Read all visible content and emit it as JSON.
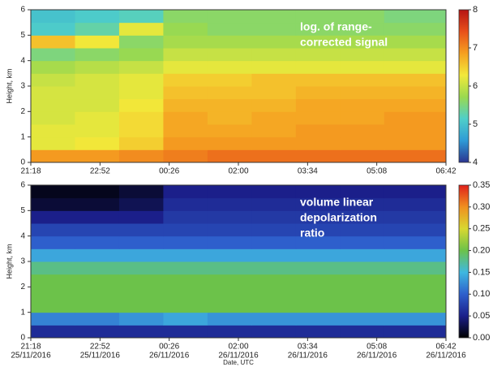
{
  "chart_data": [
    {
      "type": "heatmap",
      "ylabel": "Height, km",
      "annotation_lines": [
        "log. of range-",
        "corrected signal"
      ],
      "xlim": [
        21.3,
        30.7
      ],
      "ylim": [
        0,
        6
      ],
      "xticks": [
        {
          "value": 21.3,
          "label": "21:18"
        },
        {
          "value": 22.867,
          "label": "22:52"
        },
        {
          "value": 24.433,
          "label": "00:26"
        },
        {
          "value": 26.0,
          "label": "02:00"
        },
        {
          "value": 27.567,
          "label": "03:34"
        },
        {
          "value": 29.133,
          "label": "05:08"
        },
        {
          "value": 30.7,
          "label": "06:42"
        }
      ],
      "yticks": [
        0,
        1,
        2,
        3,
        4,
        5,
        6
      ],
      "zlim": [
        4,
        8
      ],
      "zticks": [
        4,
        5,
        6,
        7,
        8
      ],
      "colormap": [
        "#2b3590",
        "#2f9bd6",
        "#4fcfc9",
        "#9ad94f",
        "#f2e93a",
        "#f5a020",
        "#e8501a",
        "#b51414"
      ],
      "x_bins": [
        21.3,
        22.3,
        23.3,
        24.3,
        25.3,
        26.3,
        27.3,
        28.3,
        29.3,
        30.7
      ],
      "y_bins": [
        0,
        0.5,
        1,
        1.5,
        2,
        2.5,
        3,
        3.5,
        4,
        4.5,
        5,
        5.5,
        6
      ],
      "values": [
        [
          6.9,
          6.9,
          7.0,
          7.1,
          7.2,
          7.2,
          7.2,
          7.2,
          7.2
        ],
        [
          6.2,
          6.3,
          6.5,
          6.9,
          6.9,
          6.9,
          6.9,
          6.9,
          6.9
        ],
        [
          6.2,
          6.2,
          6.4,
          6.8,
          6.8,
          6.8,
          6.9,
          6.9,
          6.9
        ],
        [
          6.1,
          6.2,
          6.4,
          6.8,
          6.7,
          6.8,
          6.8,
          6.8,
          6.9
        ],
        [
          6.1,
          6.1,
          6.3,
          6.7,
          6.7,
          6.7,
          6.8,
          6.8,
          6.8
        ],
        [
          6.1,
          6.1,
          6.2,
          6.6,
          6.6,
          6.6,
          6.7,
          6.7,
          6.7
        ],
        [
          6.0,
          6.1,
          6.2,
          6.5,
          6.5,
          6.6,
          6.6,
          6.6,
          6.6
        ],
        [
          5.8,
          5.9,
          6.0,
          6.2,
          6.2,
          6.2,
          6.2,
          6.2,
          6.2
        ],
        [
          5.5,
          5.6,
          5.7,
          6.0,
          6.0,
          6.0,
          6.0,
          6.0,
          6.0
        ],
        [
          6.6,
          6.3,
          5.6,
          5.8,
          5.8,
          5.8,
          5.8,
          5.8,
          5.8
        ],
        [
          5.1,
          5.3,
          6.2,
          5.7,
          5.6,
          5.6,
          5.6,
          5.6,
          5.6
        ],
        [
          5.0,
          5.1,
          5.2,
          5.6,
          5.6,
          5.6,
          5.6,
          5.6,
          5.5
        ]
      ]
    },
    {
      "type": "heatmap",
      "ylabel": "Height, km",
      "xlabel": "Date, UTC",
      "annotation_lines": [
        "volume linear",
        "depolarization",
        "ratio"
      ],
      "xlim": [
        21.3,
        30.7
      ],
      "ylim": [
        0,
        6
      ],
      "xticks": [
        {
          "value": 21.3,
          "label": "21:18"
        },
        {
          "value": 22.867,
          "label": "22:52"
        },
        {
          "value": 24.433,
          "label": "00:26"
        },
        {
          "value": 26.0,
          "label": "02:00"
        },
        {
          "value": 27.567,
          "label": "03:34"
        },
        {
          "value": 29.133,
          "label": "05:08"
        },
        {
          "value": 30.7,
          "label": "06:42"
        }
      ],
      "xtick_dates": [
        "25/11/2016",
        "25/11/2016",
        "26/11/2016",
        "26/11/2016",
        "26/11/2016",
        "26/11/2016",
        "26/11/2016"
      ],
      "yticks": [
        0,
        1,
        2,
        3,
        4,
        5,
        6
      ],
      "zlim": [
        0,
        0.35
      ],
      "zticks": [
        {
          "value": 0,
          "label": "0.00"
        },
        0.05,
        {
          "value": 0.1,
          "label": "0.10"
        },
        0.15,
        {
          "value": 0.2,
          "label": "0.20"
        },
        0.25,
        {
          "value": 0.3,
          "label": "0.30"
        },
        0.35
      ],
      "colormap": [
        "#000000",
        "#1b1f8a",
        "#2e5fcc",
        "#3fb8e0",
        "#6cc24a",
        "#d8d830",
        "#f09020",
        "#e0201a"
      ],
      "x_bins": [
        21.3,
        22.3,
        23.3,
        24.3,
        25.3,
        26.3,
        27.3,
        28.3,
        29.3,
        30.7
      ],
      "y_bins": [
        0,
        0.5,
        1,
        1.5,
        2,
        2.5,
        3,
        3.5,
        4,
        4.5,
        5,
        5.5,
        6
      ],
      "values": [
        [
          0.06,
          0.06,
          0.06,
          0.06,
          0.06,
          0.06,
          0.06,
          0.06,
          0.06
        ],
        [
          0.12,
          0.12,
          0.13,
          0.14,
          0.13,
          0.13,
          0.13,
          0.13,
          0.13
        ],
        [
          0.2,
          0.2,
          0.2,
          0.2,
          0.2,
          0.2,
          0.2,
          0.2,
          0.2
        ],
        [
          0.2,
          0.2,
          0.2,
          0.2,
          0.2,
          0.2,
          0.2,
          0.2,
          0.2
        ],
        [
          0.2,
          0.2,
          0.2,
          0.2,
          0.2,
          0.2,
          0.2,
          0.2,
          0.2
        ],
        [
          0.18,
          0.18,
          0.18,
          0.18,
          0.18,
          0.18,
          0.18,
          0.18,
          0.18
        ],
        [
          0.14,
          0.14,
          0.14,
          0.14,
          0.14,
          0.14,
          0.14,
          0.14,
          0.14
        ],
        [
          0.1,
          0.1,
          0.1,
          0.1,
          0.1,
          0.1,
          0.1,
          0.1,
          0.1
        ],
        [
          0.08,
          0.08,
          0.08,
          0.08,
          0.08,
          0.08,
          0.08,
          0.08,
          0.08
        ],
        [
          0.05,
          0.05,
          0.05,
          0.07,
          0.07,
          0.07,
          0.07,
          0.07,
          0.07
        ],
        [
          0.02,
          0.02,
          0.03,
          0.06,
          0.06,
          0.06,
          0.06,
          0.06,
          0.06
        ],
        [
          0.01,
          0.01,
          0.02,
          0.05,
          0.05,
          0.05,
          0.05,
          0.05,
          0.05
        ]
      ]
    }
  ]
}
